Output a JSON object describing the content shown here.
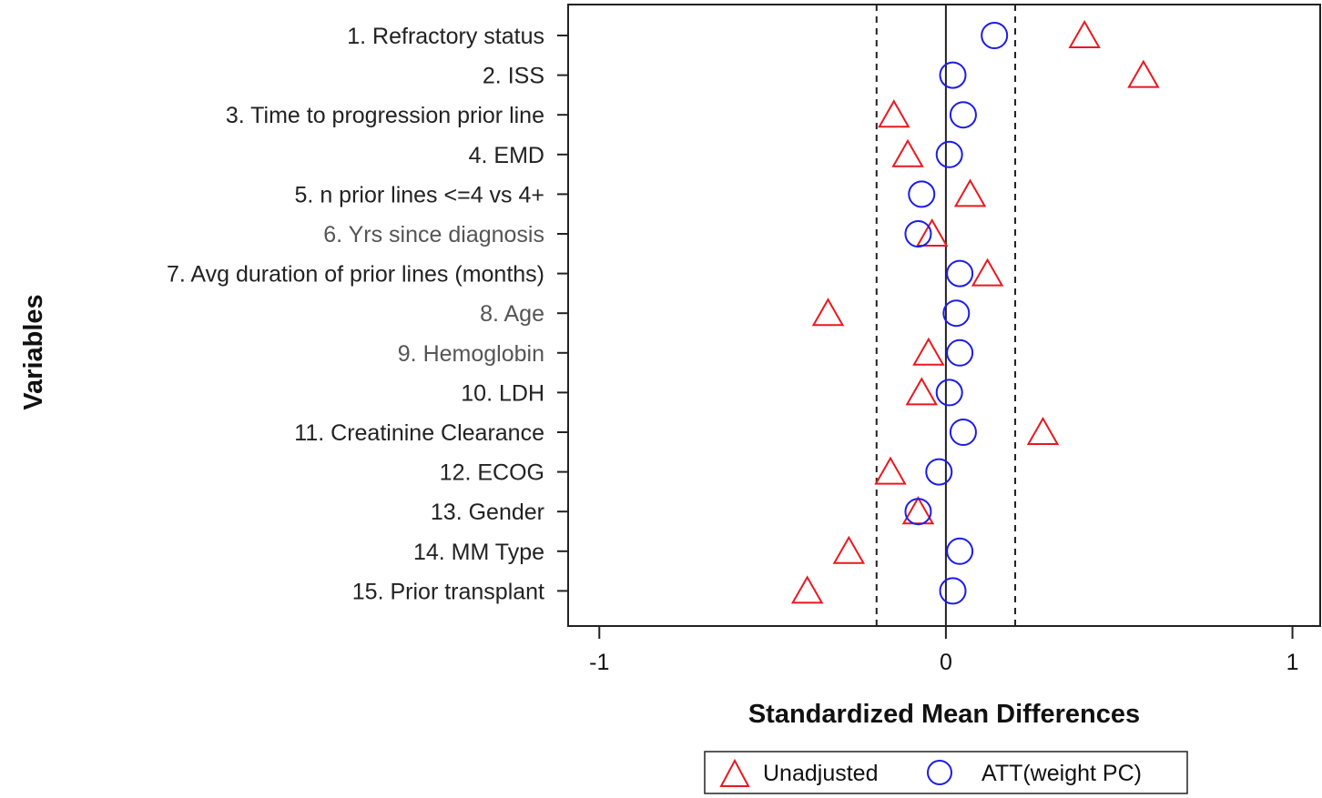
{
  "chart_data": {
    "type": "scatter",
    "xlabel": "Standardized Mean Differences",
    "ylabel": "Variables",
    "xlim": [
      -1.09,
      1.08
    ],
    "xticks": [
      "-1",
      "0",
      "1"
    ],
    "xtick_values": [
      -1,
      0,
      1
    ],
    "reference_lines": {
      "solid": 0,
      "dashed": [
        -0.2,
        0.2
      ]
    },
    "grid": false,
    "legend_position": "bottom",
    "categories": [
      "1. Refractory status",
      "2. ISS",
      "3. Time to progression prior line",
      "4. EMD",
      "5. n prior lines <=4 vs 4+",
      "6. Yrs since diagnosis",
      "7. Avg duration of prior lines (months)",
      "8. Age",
      "9. Hemoglobin",
      "10. LDH",
      "11. Creatinine Clearance",
      "12. ECOG",
      "13. Gender",
      "14. MM Type",
      "15. Prior transplant"
    ],
    "series": [
      {
        "name": "Unadjusted",
        "marker": "triangle",
        "color": "#e8191f",
        "values": [
          0.4,
          0.57,
          -0.15,
          -0.11,
          0.07,
          -0.04,
          0.12,
          -0.34,
          -0.05,
          -0.07,
          0.28,
          -0.16,
          -0.08,
          -0.28,
          -0.4
        ]
      },
      {
        "name": "ATT(weight PC)",
        "marker": "circle",
        "color": "#1c1ce8",
        "values": [
          0.14,
          0.02,
          0.05,
          0.01,
          -0.07,
          -0.08,
          0.04,
          0.03,
          0.04,
          0.01,
          0.05,
          -0.02,
          -0.08,
          0.04,
          0.02
        ]
      }
    ]
  }
}
